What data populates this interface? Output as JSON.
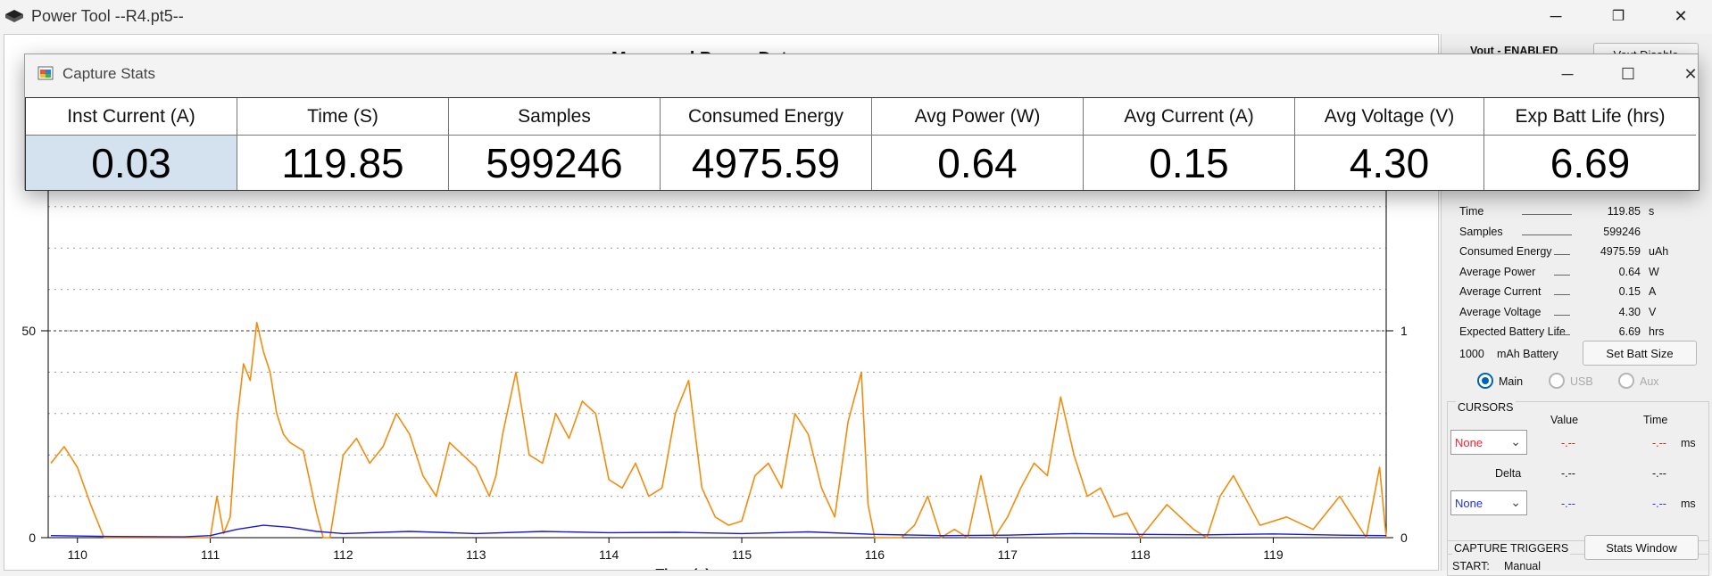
{
  "window": {
    "title": "Power Tool --R4.pt5--",
    "minimize": "─",
    "restore": "❐",
    "close": "✕"
  },
  "chart": {
    "title": "Measured Power Data",
    "partial_xlabel": "Time (s)"
  },
  "chart_data": {
    "type": "line",
    "title": "Measured Power Data",
    "xlabel": "",
    "ylabel": "",
    "x_ticks": [
      "110",
      "111",
      "112",
      "113",
      "114",
      "115",
      "116",
      "117",
      "118",
      "119"
    ],
    "xlim": [
      109.78,
      119.85
    ],
    "y_left_ticks": [
      "0",
      "50"
    ],
    "y_left_partial_top": "1",
    "ylim_left": [
      0,
      100
    ],
    "y_right_ticks": [
      "0",
      "1"
    ],
    "ylim_right": [
      0,
      2
    ],
    "grid": true,
    "series": [
      {
        "color": "#f28c0f",
        "x": [
          109.8,
          109.9,
          110.0,
          110.1,
          110.2,
          110.3,
          110.5,
          110.7,
          110.9,
          111.0,
          111.05,
          111.1,
          111.15,
          111.2,
          111.25,
          111.3,
          111.35,
          111.4,
          111.45,
          111.5,
          111.55,
          111.6,
          111.7,
          111.8,
          111.85,
          111.9,
          112.0,
          112.1,
          112.2,
          112.3,
          112.4,
          112.5,
          112.6,
          112.7,
          112.8,
          112.9,
          113.0,
          113.1,
          113.15,
          113.2,
          113.3,
          113.4,
          113.5,
          113.6,
          113.7,
          113.8,
          113.9,
          114.0,
          114.1,
          114.2,
          114.3,
          114.4,
          114.5,
          114.6,
          114.65,
          114.7,
          114.8,
          114.9,
          115.0,
          115.1,
          115.2,
          115.3,
          115.4,
          115.5,
          115.6,
          115.7,
          115.8,
          115.9,
          115.95,
          116.0,
          116.1,
          116.2,
          116.3,
          116.4,
          116.5,
          116.6,
          116.7,
          116.8,
          116.9,
          117.0,
          117.1,
          117.2,
          117.3,
          117.4,
          117.5,
          117.6,
          117.7,
          117.8,
          117.9,
          118.0,
          118.2,
          118.4,
          118.5,
          118.6,
          118.7,
          118.9,
          119.1,
          119.3,
          119.5,
          119.6,
          119.7,
          119.8,
          119.85
        ],
        "y": [
          18,
          22,
          17,
          8,
          0,
          0,
          0,
          0,
          0,
          0,
          10,
          1,
          5,
          28,
          42,
          38,
          52,
          45,
          40,
          30,
          25,
          23,
          21,
          6,
          0,
          0,
          20,
          24,
          18,
          22,
          30,
          25,
          15,
          10,
          23,
          20,
          17,
          10,
          15,
          25,
          40,
          20,
          18,
          30,
          24,
          33,
          30,
          14,
          12,
          18,
          10,
          12,
          30,
          38,
          25,
          12,
          5,
          3,
          4,
          15,
          18,
          12,
          30,
          25,
          12,
          5,
          28,
          40,
          8,
          0,
          0,
          0,
          3,
          10,
          0,
          2,
          0,
          15,
          0,
          5,
          12,
          18,
          15,
          34,
          20,
          10,
          12,
          5,
          6,
          0,
          8,
          2,
          0,
          10,
          15,
          3,
          5,
          2,
          10,
          5,
          0,
          17,
          0
        ]
      },
      {
        "color": "#1a1ad6",
        "x": [
          109.8,
          110.2,
          110.8,
          111.0,
          111.2,
          111.4,
          111.6,
          111.8,
          112.0,
          112.5,
          113.0,
          113.5,
          114.0,
          114.5,
          115.0,
          115.5,
          116.0,
          116.5,
          117.0,
          117.5,
          118.0,
          118.5,
          119.0,
          119.5,
          119.85
        ],
        "y": [
          0.5,
          0.3,
          0.2,
          0.5,
          2,
          3,
          2.5,
          1.5,
          1,
          1.5,
          1,
          1.5,
          1.2,
          1.3,
          1,
          1.4,
          0.8,
          0.5,
          0.6,
          1,
          0.8,
          0.7,
          0.9,
          0.6,
          0.5
        ]
      }
    ]
  },
  "side": {
    "vout_status": "Vout - ENABLED",
    "vout_button": "Vout Disable",
    "stats": [
      {
        "label": "Time",
        "value": "119.85",
        "unit": "s"
      },
      {
        "label": "Samples",
        "value": "599246",
        "unit": ""
      },
      {
        "label": "Consumed Energy",
        "value": "4975.59",
        "unit": "uAh"
      },
      {
        "label": "Average Power",
        "value": "0.64",
        "unit": "W"
      },
      {
        "label": "Average Current",
        "value": "0.15",
        "unit": "A"
      },
      {
        "label": "Average Voltage",
        "value": "4.30",
        "unit": "V"
      },
      {
        "label": "Expected Battery Life",
        "value": "6.69",
        "unit": "hrs"
      }
    ],
    "battery_capacity": "1000",
    "battery_unit": "mAh Battery",
    "set_batt_button": "Set Batt Size",
    "radios": {
      "main": "Main",
      "usb": "USB",
      "aux": "Aux"
    },
    "cursors": {
      "title": "CURSORS",
      "value_header": "Value",
      "time_header": "Time",
      "dropdown1": "None",
      "dropdown2": "None",
      "value1": "-.--",
      "time1": "-.--",
      "unit1": "ms",
      "delta_label": "Delta",
      "delta_value": "-.--",
      "delta_time": "-.--",
      "value2": "-.--",
      "time2": "-.--",
      "unit2": "ms"
    },
    "triggers": {
      "title": "CAPTURE TRIGGERS",
      "stats_button": "Stats Window",
      "start_label": "START:",
      "start_value": "Manual"
    },
    "colors": {
      "red": "#e02020",
      "blue": "#2030e0"
    }
  },
  "capture_stats": {
    "title": "Capture Stats",
    "minimize": "─",
    "maximize": "☐",
    "close": "✕",
    "columns": [
      {
        "header": "Inst Current (A)",
        "value": "0.03"
      },
      {
        "header": "Time (S)",
        "value": "119.85"
      },
      {
        "header": "Samples",
        "value": "599246"
      },
      {
        "header": "Consumed Energy",
        "value": "4975.59"
      },
      {
        "header": "Avg Power (W)",
        "value": "0.64"
      },
      {
        "header": "Avg Current (A)",
        "value": "0.15"
      },
      {
        "header": "Avg Voltage (V)",
        "value": "4.30"
      },
      {
        "header": "Exp Batt Life (hrs)",
        "value": "6.69"
      }
    ]
  }
}
